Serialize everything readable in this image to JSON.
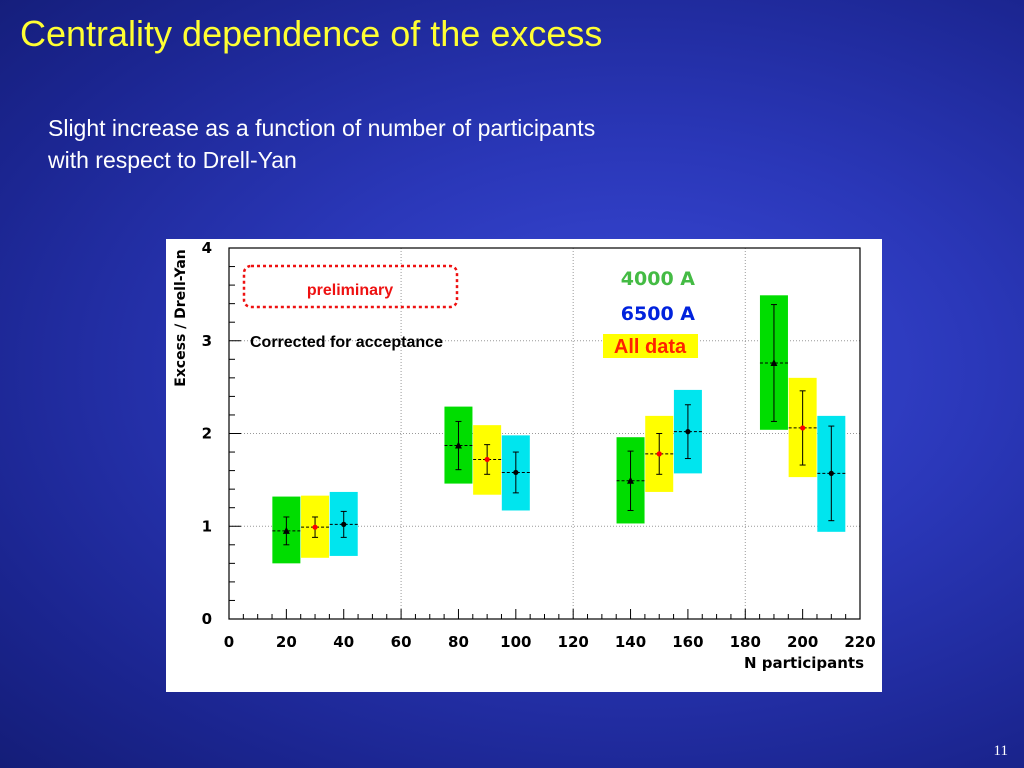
{
  "slide": {
    "title": "Centrality dependence of the excess",
    "subtitle": "Slight increase as a function of number of participants with respect to Drell-Yan",
    "page_number": "11"
  },
  "chart_data": {
    "type": "scatter",
    "title": "",
    "xlabel": "N participants",
    "ylabel": "Excess / Drell-Yan",
    "xlim": [
      0,
      220
    ],
    "ylim": [
      0,
      4
    ],
    "x_ticks": [
      0,
      20,
      40,
      60,
      80,
      100,
      120,
      140,
      160,
      180,
      200,
      220
    ],
    "y_ticks": [
      0,
      1,
      2,
      3,
      4
    ],
    "grid": true,
    "legend_position": "top-right",
    "annotations": {
      "preliminary": "preliminary",
      "corrected": "Corrected for acceptance"
    },
    "series": [
      {
        "name": "4000 A",
        "color": "#00dd00",
        "label_color": "#44bb44",
        "marker": "triangle",
        "points": [
          {
            "x": 20,
            "y": 0.95,
            "err": 0.15,
            "sys_low": 0.6,
            "sys_high": 1.32
          },
          {
            "x": 80,
            "y": 1.87,
            "err": 0.26,
            "sys_low": 1.46,
            "sys_high": 2.29
          },
          {
            "x": 140,
            "y": 1.49,
            "err": 0.32,
            "sys_low": 1.03,
            "sys_high": 1.96
          },
          {
            "x": 190,
            "y": 2.76,
            "err": 0.63,
            "sys_low": 2.04,
            "sys_high": 3.49
          }
        ]
      },
      {
        "name": "6500 A",
        "color": "#00e5ee",
        "label_color": "#0022dd",
        "marker": "circle",
        "points": [
          {
            "x": 40,
            "y": 1.02,
            "err": 0.14,
            "sys_low": 0.68,
            "sys_high": 1.37
          },
          {
            "x": 100,
            "y": 1.58,
            "err": 0.22,
            "sys_low": 1.17,
            "sys_high": 1.98
          },
          {
            "x": 160,
            "y": 2.02,
            "err": 0.29,
            "sys_low": 1.57,
            "sys_high": 2.47
          },
          {
            "x": 210,
            "y": 1.57,
            "err": 0.51,
            "sys_low": 0.94,
            "sys_high": 2.19
          }
        ]
      },
      {
        "name": "All data",
        "color": "#ffff00",
        "label_color": "#ff2200",
        "marker": "circle",
        "points": [
          {
            "x": 30,
            "y": 0.99,
            "err": 0.11,
            "sys_low": 0.66,
            "sys_high": 1.33
          },
          {
            "x": 90,
            "y": 1.72,
            "err": 0.16,
            "sys_low": 1.34,
            "sys_high": 2.09
          },
          {
            "x": 150,
            "y": 1.78,
            "err": 0.22,
            "sys_low": 1.37,
            "sys_high": 2.19
          },
          {
            "x": 200,
            "y": 2.06,
            "err": 0.4,
            "sys_low": 1.53,
            "sys_high": 2.6
          }
        ]
      }
    ]
  }
}
